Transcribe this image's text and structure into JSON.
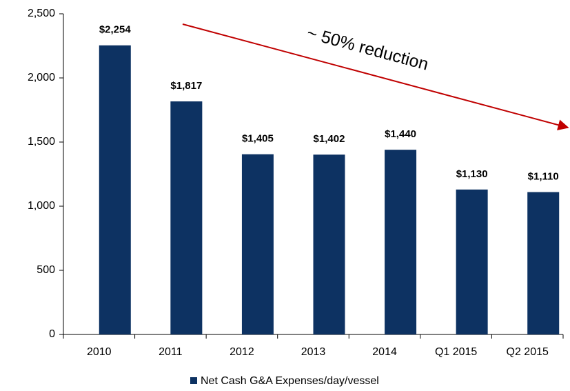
{
  "chart_data": {
    "type": "bar",
    "categories": [
      "2010",
      "2011",
      "2012",
      "2013",
      "2014",
      "Q1 2015",
      "Q2 2015"
    ],
    "series": [
      {
        "name": "Net Cash G&A Expenses/day/vessel",
        "color": "#0d3262",
        "values": [
          2254,
          1817,
          1405,
          1402,
          1440,
          1130,
          1110
        ],
        "value_labels": [
          "$2,254",
          "$1,817",
          "$1,405",
          "$1,402",
          "$1,440",
          "$1,130",
          "$1,110"
        ]
      }
    ],
    "ylim": [
      0,
      2500
    ],
    "yticks": [
      0,
      500,
      {
        "value": 1000,
        "label": "1,000"
      },
      {
        "value": 1500,
        "label": "1,500"
      },
      {
        "value": 2000,
        "label": "2,000"
      },
      {
        "value": 2500,
        "label": "2,500"
      }
    ],
    "annotation": "~ 50% reduction",
    "annotation_color": "#c00000",
    "legend": "bottom"
  }
}
